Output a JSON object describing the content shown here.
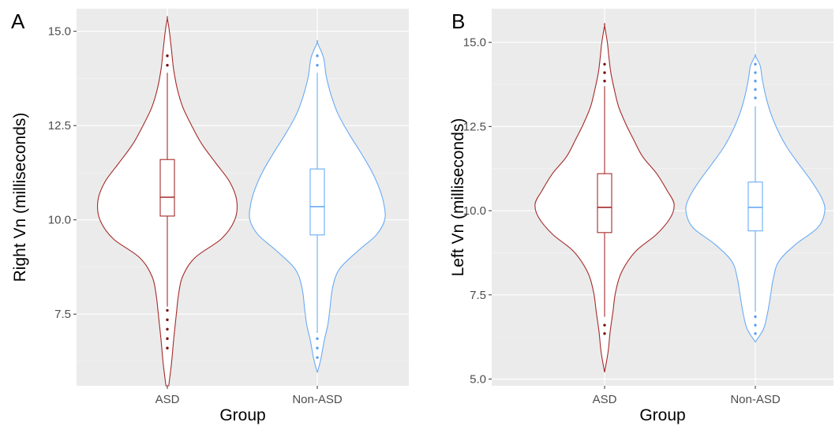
{
  "chart_data": [
    {
      "type": "violin",
      "panel": "A",
      "xlabel": "Group",
      "ylabel": "Right Vn (milliseconds)",
      "categories": [
        "ASD",
        "Non-ASD"
      ],
      "ylim": [
        5.6,
        15.6
      ],
      "yticks": [
        7.5,
        10.0,
        12.5,
        15.0
      ],
      "ytick_labels": [
        "7.5",
        "10.0",
        "12.5",
        "15.0"
      ],
      "grid": true,
      "legend": "none",
      "groups": [
        {
          "name": "ASD",
          "color": "#a52a2a",
          "box": {
            "q1": 10.1,
            "median": 10.6,
            "q3": 11.6,
            "whisker_low": 7.7,
            "whisker_high": 13.9
          },
          "outliers": [
            14.1,
            14.35,
            7.6,
            7.35,
            7.1,
            6.85,
            6.6
          ],
          "density": [
            [
              5.6,
              0.02
            ],
            [
              6.2,
              0.06
            ],
            [
              6.8,
              0.09
            ],
            [
              7.5,
              0.13
            ],
            [
              8.0,
              0.16
            ],
            [
              8.5,
              0.22
            ],
            [
              9.0,
              0.4
            ],
            [
              9.5,
              0.78
            ],
            [
              10.0,
              0.97
            ],
            [
              10.5,
              1.0
            ],
            [
              11.0,
              0.9
            ],
            [
              11.5,
              0.7
            ],
            [
              12.0,
              0.5
            ],
            [
              12.5,
              0.35
            ],
            [
              13.0,
              0.22
            ],
            [
              13.5,
              0.14
            ],
            [
              14.0,
              0.09
            ],
            [
              14.5,
              0.06
            ],
            [
              15.0,
              0.03
            ],
            [
              15.35,
              0.0
            ]
          ]
        },
        {
          "name": "Non-ASD",
          "color": "#6aabf5",
          "box": {
            "q1": 9.6,
            "median": 10.35,
            "q3": 11.35,
            "whisker_low": 7.0,
            "whisker_high": 13.9
          },
          "outliers": [
            14.35,
            14.1,
            6.85,
            6.6,
            6.35
          ],
          "density": [
            [
              5.95,
              0.0
            ],
            [
              6.3,
              0.05
            ],
            [
              6.8,
              0.1
            ],
            [
              7.2,
              0.15
            ],
            [
              7.6,
              0.18
            ],
            [
              8.2,
              0.22
            ],
            [
              8.7,
              0.32
            ],
            [
              9.2,
              0.6
            ],
            [
              9.6,
              0.85
            ],
            [
              10.0,
              0.97
            ],
            [
              10.4,
              0.96
            ],
            [
              10.8,
              0.9
            ],
            [
              11.3,
              0.78
            ],
            [
              11.8,
              0.62
            ],
            [
              12.3,
              0.45
            ],
            [
              12.8,
              0.3
            ],
            [
              13.3,
              0.2
            ],
            [
              13.8,
              0.13
            ],
            [
              14.3,
              0.09
            ],
            [
              14.7,
              0.0
            ]
          ]
        }
      ]
    },
    {
      "type": "violin",
      "panel": "B",
      "xlabel": "Group",
      "ylabel": "Left Vn (milliseconds)",
      "categories": [
        "ASD",
        "Non-ASD"
      ],
      "ylim": [
        4.8,
        16.0
      ],
      "yticks": [
        5.0,
        7.5,
        10.0,
        12.5,
        15.0
      ],
      "ytick_labels": [
        "5.0",
        "7.5",
        "10.0",
        "12.5",
        "15.0"
      ],
      "grid": true,
      "legend": "none",
      "groups": [
        {
          "name": "ASD",
          "color": "#a52a2a",
          "box": {
            "q1": 9.35,
            "median": 10.1,
            "q3": 11.1,
            "whisker_low": 6.85,
            "whisker_high": 13.7
          },
          "outliers": [
            14.35,
            14.1,
            13.85,
            6.6,
            6.35
          ],
          "density": [
            [
              5.2,
              0.0
            ],
            [
              5.8,
              0.05
            ],
            [
              6.4,
              0.08
            ],
            [
              7.0,
              0.12
            ],
            [
              7.6,
              0.16
            ],
            [
              8.2,
              0.25
            ],
            [
              8.8,
              0.45
            ],
            [
              9.3,
              0.75
            ],
            [
              9.8,
              0.95
            ],
            [
              10.2,
              1.0
            ],
            [
              10.6,
              0.9
            ],
            [
              11.1,
              0.75
            ],
            [
              11.6,
              0.55
            ],
            [
              12.1,
              0.42
            ],
            [
              12.6,
              0.3
            ],
            [
              13.1,
              0.2
            ],
            [
              13.6,
              0.14
            ],
            [
              14.1,
              0.09
            ],
            [
              14.6,
              0.06
            ],
            [
              15.0,
              0.04
            ],
            [
              15.5,
              0.0
            ]
          ]
        },
        {
          "name": "Non-ASD",
          "color": "#6aabf5",
          "box": {
            "q1": 9.4,
            "median": 10.1,
            "q3": 10.85,
            "whisker_low": 7.0,
            "whisker_high": 13.1
          },
          "outliers": [
            14.35,
            14.1,
            13.85,
            13.6,
            13.35,
            6.85,
            6.6,
            6.35
          ],
          "density": [
            [
              6.1,
              0.0
            ],
            [
              6.5,
              0.12
            ],
            [
              7.0,
              0.18
            ],
            [
              7.5,
              0.22
            ],
            [
              8.0,
              0.26
            ],
            [
              8.5,
              0.34
            ],
            [
              9.0,
              0.58
            ],
            [
              9.5,
              0.9
            ],
            [
              10.0,
              1.0
            ],
            [
              10.4,
              0.95
            ],
            [
              10.9,
              0.8
            ],
            [
              11.4,
              0.62
            ],
            [
              11.9,
              0.45
            ],
            [
              12.4,
              0.32
            ],
            [
              12.9,
              0.22
            ],
            [
              13.4,
              0.15
            ],
            [
              13.9,
              0.1
            ],
            [
              14.3,
              0.07
            ],
            [
              14.6,
              0.0
            ]
          ]
        }
      ]
    }
  ]
}
